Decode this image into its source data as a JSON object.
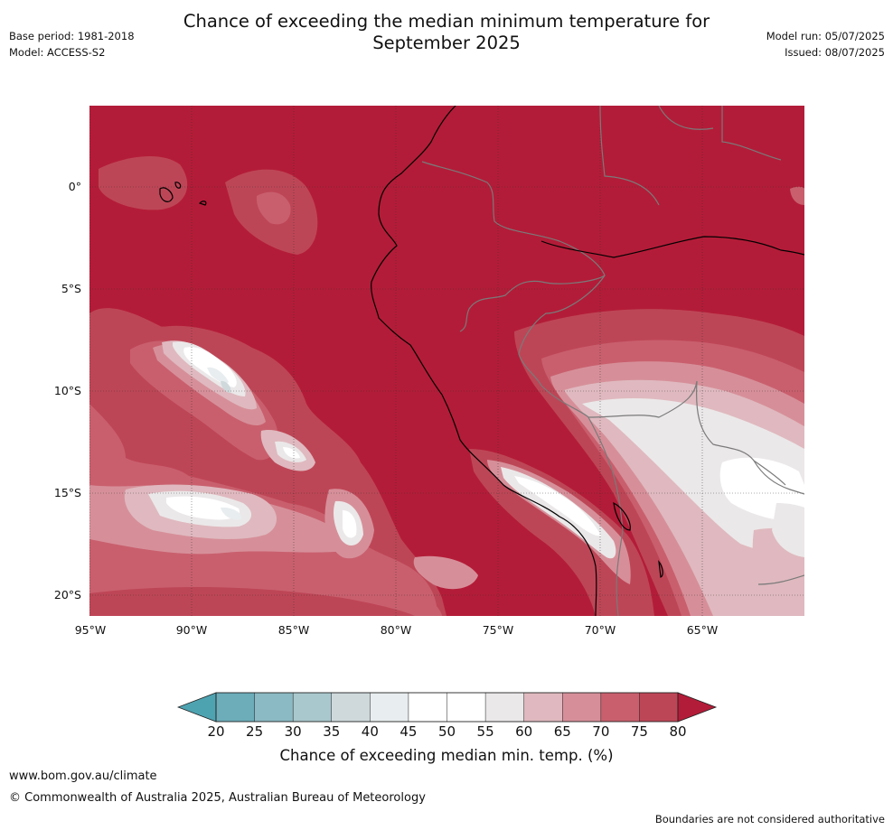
{
  "header": {
    "title_line1": "Chance of exceeding the median minimum temperature for",
    "title_line2": "September 2025",
    "base_period": "Base period: 1981-2018",
    "model": "Model: ACCESS-S2",
    "model_run": "Model run: 05/07/2025",
    "issued": "Issued: 08/07/2025"
  },
  "map": {
    "lat_labels": [
      "0°",
      "5°S",
      "10°S",
      "15°S",
      "20°S"
    ],
    "lon_labels": [
      "95°W",
      "90°W",
      "85°W",
      "80°W",
      "75°W",
      "70°W",
      "65°W"
    ],
    "lat_values": [
      0,
      -5,
      -10,
      -15,
      -20
    ],
    "lon_values": [
      -95,
      -90,
      -85,
      -80,
      -75,
      -70,
      -65
    ],
    "extent": {
      "lon_min": -95,
      "lon_max": -60,
      "lat_min": -21,
      "lat_max": 4
    },
    "background_category": "80",
    "gridlines": true
  },
  "colorbar": {
    "title": "Chance of exceeding median min. temp. (%)",
    "ticks": [
      "20",
      "25",
      "30",
      "35",
      "40",
      "45",
      "50",
      "55",
      "60",
      "65",
      "70",
      "75",
      "80"
    ],
    "colors": {
      "under": "#4ea3b1",
      "bins": [
        "#6cadb9",
        "#8bbac4",
        "#a9c8cd",
        "#cfd9dc",
        "#e8edef",
        "#ffffff",
        "#ffffff",
        "#ebe8e9",
        "#dfb9bf",
        "#d68f99",
        "#c95f6d",
        "#bd4656"
      ],
      "over": "#b31c38"
    }
  },
  "footer": {
    "url": "www.bom.gov.au/climate",
    "copyright": "© Commonwealth of Australia 2025, Australian Bureau of Meteorology",
    "note": "Boundaries are not considered authoritative"
  }
}
